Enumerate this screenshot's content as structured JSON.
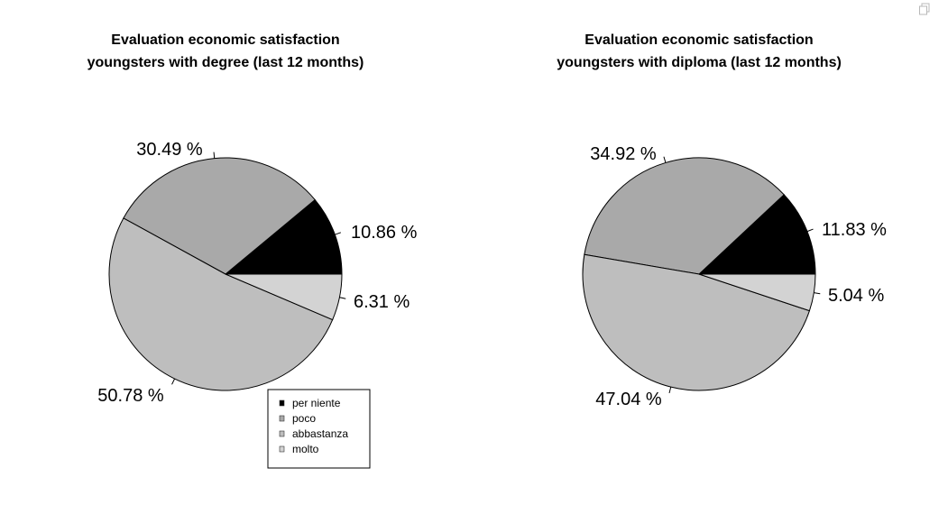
{
  "chart_data": [
    {
      "type": "pie",
      "title": [
        "Evaluation economic satisfaction",
        "youngsters with degree (last 12 months)"
      ],
      "categories": [
        "per niente",
        "poco",
        "abbastanza",
        "molto"
      ],
      "values": [
        10.86,
        30.49,
        50.78,
        6.31
      ],
      "labels": [
        "10.86 %",
        "30.49 %",
        "50.78 %",
        "6.31 %"
      ],
      "start_angle_deg": 0,
      "direction": "counterclockwise"
    },
    {
      "type": "pie",
      "title": [
        "Evaluation economic satisfaction",
        "youngsters with diploma (last 12 months)"
      ],
      "categories": [
        "per niente",
        "poco",
        "abbastanza",
        "molto"
      ],
      "values": [
        11.83,
        34.92,
        47.04,
        5.04
      ],
      "labels": [
        "11.83 %",
        "34.92 %",
        "47.04 %",
        "5.04 %"
      ],
      "start_angle_deg": 0,
      "direction": "counterclockwise"
    }
  ],
  "legend": {
    "placement": "bottom-center",
    "items": [
      "per niente",
      "poco",
      "abbastanza",
      "molto"
    ]
  },
  "colors": {
    "per niente": "#000000",
    "poco": "#a9a9a9",
    "abbastanza": "#bebebe",
    "molto": "#d3d3d3",
    "outline": "#000000"
  },
  "icons": {
    "corner": "copy-icon"
  }
}
